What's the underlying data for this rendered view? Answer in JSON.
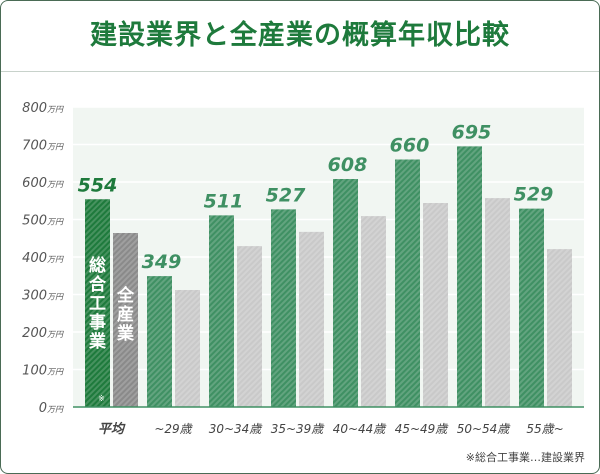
{
  "chart_data": {
    "type": "bar",
    "title": "建設業界と全産業の概算年収比較",
    "unit": "万円",
    "age_unit": "歳",
    "ylim": [
      0,
      800
    ],
    "yticks": [
      0,
      100,
      200,
      300,
      400,
      500,
      600,
      700,
      800
    ],
    "categories": [
      "平均",
      "~29歳",
      "30~34歳",
      "35~39歳",
      "40~44歳",
      "45~49歳",
      "50~54歳",
      "55歳~"
    ],
    "series": [
      {
        "name": "総合工事業",
        "values": [
          554,
          349,
          511,
          527,
          608,
          660,
          695,
          529
        ],
        "color": "#3f9063",
        "avg_color": "#1e7a3c"
      },
      {
        "name": "全産業",
        "values": [
          464,
          312,
          429,
          467,
          509,
          544,
          557,
          421
        ],
        "color": "#c9c9c9",
        "avg_color": "#8a8a8a"
      }
    ],
    "bar_labels": [
      "総合工事業",
      "全産業"
    ],
    "asterisk": "※",
    "footnote": "※総合工事業…建設業界",
    "grid": true
  }
}
